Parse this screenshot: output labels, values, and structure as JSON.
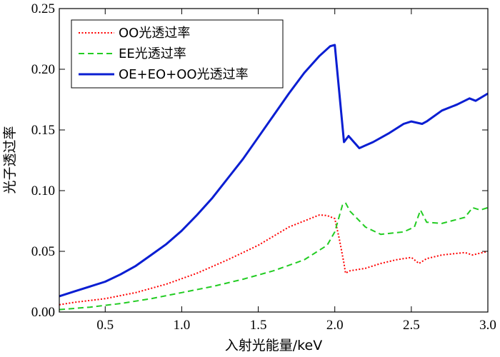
{
  "chart_data": {
    "type": "line",
    "xlabel": "入射光能量/keV",
    "ylabel": "光子透过率",
    "xlim": [
      0.2,
      3.0
    ],
    "ylim": [
      0,
      0.25
    ],
    "x_ticks": [
      0.5,
      1.0,
      1.5,
      2.0,
      2.5,
      3.0
    ],
    "x_tick_labels": [
      "0.5",
      "1.0",
      "1.5",
      "2.0",
      "2.5",
      "3.0"
    ],
    "y_ticks": [
      0,
      0.05,
      0.1,
      0.15,
      0.2,
      0.25
    ],
    "y_tick_labels": [
      "0.00",
      "0.05",
      "0.10",
      "0.15",
      "0.20",
      "0.25"
    ],
    "grid": false,
    "legend_position": "top-left",
    "series": [
      {
        "name": "OO光透过率",
        "color": "#ff0000",
        "style": "dotted",
        "points": [
          [
            0.2,
            0.006
          ],
          [
            0.3,
            0.008
          ],
          [
            0.5,
            0.011
          ],
          [
            0.7,
            0.016
          ],
          [
            0.9,
            0.023
          ],
          [
            1.1,
            0.032
          ],
          [
            1.3,
            0.043
          ],
          [
            1.5,
            0.055
          ],
          [
            1.7,
            0.07
          ],
          [
            1.9,
            0.08
          ],
          [
            1.95,
            0.0795
          ],
          [
            2.0,
            0.077
          ],
          [
            2.03,
            0.06
          ],
          [
            2.06,
            0.04
          ],
          [
            2.07,
            0.032
          ],
          [
            2.1,
            0.034
          ],
          [
            2.2,
            0.036
          ],
          [
            2.3,
            0.04
          ],
          [
            2.4,
            0.043
          ],
          [
            2.5,
            0.045
          ],
          [
            2.55,
            0.04
          ],
          [
            2.6,
            0.044
          ],
          [
            2.7,
            0.047
          ],
          [
            2.85,
            0.049
          ],
          [
            2.9,
            0.047
          ],
          [
            3.0,
            0.05
          ]
        ]
      },
      {
        "name": "EE光透过率",
        "color": "#22cc22",
        "style": "dashed",
        "points": [
          [
            0.2,
            0.002
          ],
          [
            0.4,
            0.004
          ],
          [
            0.6,
            0.007
          ],
          [
            0.8,
            0.011
          ],
          [
            1.0,
            0.016
          ],
          [
            1.2,
            0.021
          ],
          [
            1.4,
            0.027
          ],
          [
            1.6,
            0.034
          ],
          [
            1.8,
            0.043
          ],
          [
            1.95,
            0.055
          ],
          [
            2.0,
            0.066
          ],
          [
            2.05,
            0.088
          ],
          [
            2.07,
            0.09
          ],
          [
            2.1,
            0.083
          ],
          [
            2.2,
            0.07
          ],
          [
            2.3,
            0.064
          ],
          [
            2.45,
            0.066
          ],
          [
            2.52,
            0.07
          ],
          [
            2.56,
            0.084
          ],
          [
            2.6,
            0.074
          ],
          [
            2.7,
            0.073
          ],
          [
            2.85,
            0.078
          ],
          [
            2.9,
            0.086
          ],
          [
            2.95,
            0.084
          ],
          [
            3.0,
            0.086
          ]
        ]
      },
      {
        "name": "OE+EO+OO光透过率",
        "color": "#0a1ed2",
        "style": "solid",
        "points": [
          [
            0.2,
            0.013
          ],
          [
            0.3,
            0.017
          ],
          [
            0.4,
            0.021
          ],
          [
            0.5,
            0.025
          ],
          [
            0.6,
            0.031
          ],
          [
            0.7,
            0.038
          ],
          [
            0.8,
            0.047
          ],
          [
            0.9,
            0.056
          ],
          [
            1.0,
            0.067
          ],
          [
            1.1,
            0.08
          ],
          [
            1.2,
            0.094
          ],
          [
            1.3,
            0.11
          ],
          [
            1.4,
            0.126
          ],
          [
            1.5,
            0.144
          ],
          [
            1.6,
            0.162
          ],
          [
            1.7,
            0.18
          ],
          [
            1.8,
            0.197
          ],
          [
            1.9,
            0.211
          ],
          [
            1.97,
            0.219
          ],
          [
            2.0,
            0.22
          ],
          [
            2.06,
            0.14
          ],
          [
            2.09,
            0.145
          ],
          [
            2.16,
            0.135
          ],
          [
            2.25,
            0.14
          ],
          [
            2.35,
            0.147
          ],
          [
            2.45,
            0.155
          ],
          [
            2.5,
            0.157
          ],
          [
            2.57,
            0.155
          ],
          [
            2.6,
            0.157
          ],
          [
            2.7,
            0.166
          ],
          [
            2.8,
            0.171
          ],
          [
            2.88,
            0.176
          ],
          [
            2.92,
            0.174
          ],
          [
            3.0,
            0.18
          ]
        ]
      }
    ]
  }
}
